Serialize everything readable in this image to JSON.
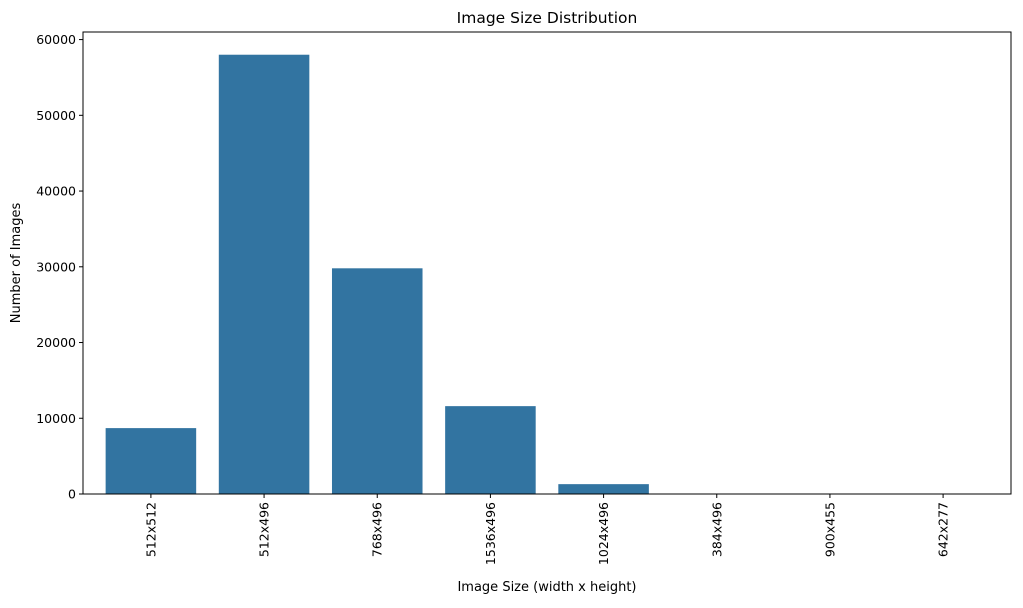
{
  "chart_data": {
    "type": "bar",
    "title": "Image Size Distribution",
    "xlabel": "Image Size (width x height)",
    "ylabel": "Number of Images",
    "categories": [
      "512x512",
      "512x496",
      "768x496",
      "1536x496",
      "1024x496",
      "384x496",
      "900x455",
      "642x277"
    ],
    "values": [
      8700,
      58000,
      29800,
      11600,
      1300,
      40,
      20,
      10
    ],
    "ylim": [
      0,
      61000
    ],
    "yticks": [
      0,
      10000,
      20000,
      30000,
      40000,
      50000,
      60000
    ],
    "ytick_labels": [
      "0",
      "10000",
      "20000",
      "30000",
      "40000",
      "50000",
      "60000"
    ],
    "bar_color": "#3274a1",
    "grid": false,
    "legend": "none"
  }
}
